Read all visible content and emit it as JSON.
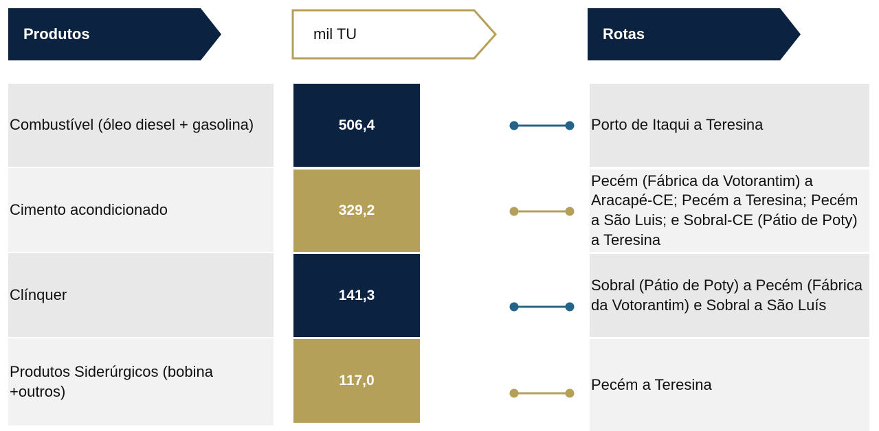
{
  "header": {
    "products": "Produtos",
    "unit": "mil TU",
    "routes": "Rotas"
  },
  "rows": [
    {
      "product": "Combustível (óleo diesel + gasolina)",
      "value": "506,4",
      "route": "Porto de Itaqui a Teresina"
    },
    {
      "product": "Cimento acondicionado",
      "value": "329,2",
      "route": "Pecém (Fábrica da Votorantim) a Aracapé-CE; Pecém a Teresina; Pecém a São Luis; e Sobral-CE (Pátio de Poty) a Teresina"
    },
    {
      "product": "Clínquer",
      "value": "141,3",
      "route": "Sobral (Pátio de Poty) a Pecém (Fábrica da Votorantim) e Sobral a São Luís"
    },
    {
      "product": "Produtos Siderúrgicos (bobina +outros)",
      "value": "117,0",
      "route": "Pecém a Teresina"
    }
  ]
}
